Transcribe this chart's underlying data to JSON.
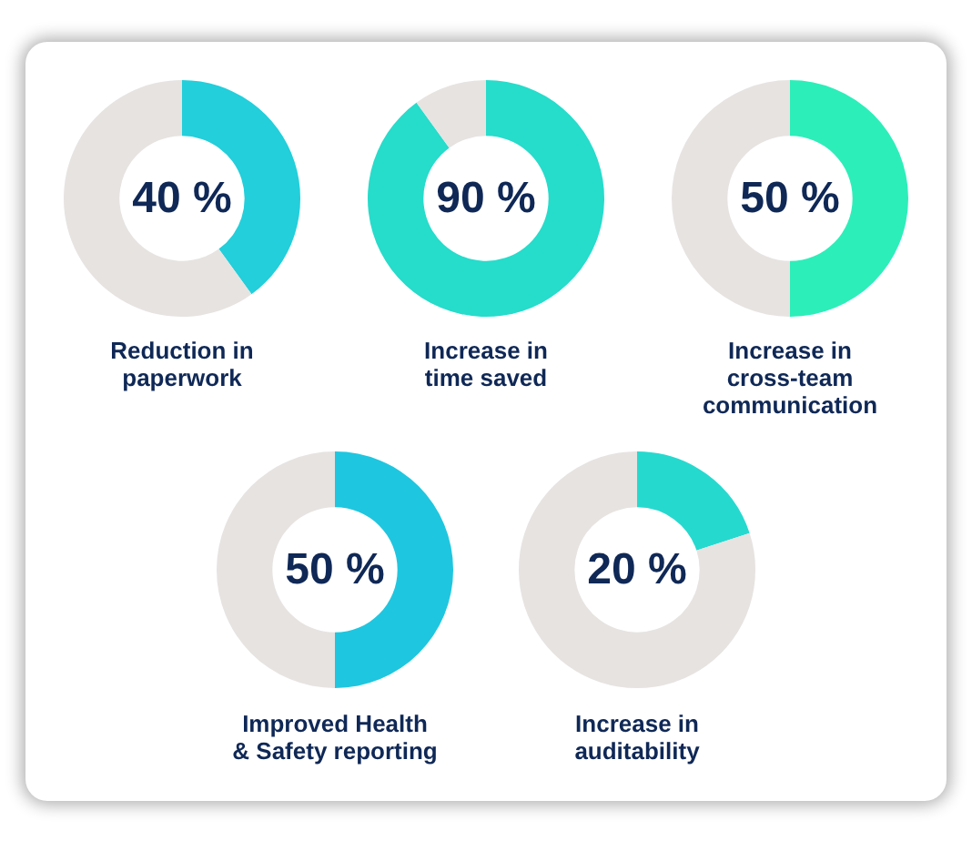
{
  "chart_data": [
    {
      "type": "donut",
      "title": "Reduction in paperwork",
      "categories": [
        null,
        null
      ],
      "values": [
        40,
        60
      ],
      "colors": [
        "#22cfdb",
        "#e6e3e1"
      ],
      "annotations": [
        "40 %"
      ]
    },
    {
      "type": "donut",
      "title": "Increase in time saved",
      "categories": [
        null,
        null
      ],
      "values": [
        90,
        10
      ],
      "colors": [
        "#26dccb",
        "#e6e3e1"
      ],
      "annotations": [
        "90 %"
      ]
    },
    {
      "type": "donut",
      "title": "Increase in cross-team communication",
      "categories": [
        null,
        null
      ],
      "values": [
        50,
        50
      ],
      "colors": [
        "#2ceeb9",
        "#e6e3e1"
      ],
      "annotations": [
        "50 %"
      ]
    },
    {
      "type": "donut",
      "title": "Improved Health & Safety reporting",
      "categories": [
        null,
        null
      ],
      "values": [
        50,
        50
      ],
      "colors": [
        "#1fc6df",
        "#e6e3e1"
      ],
      "annotations": [
        "50 %"
      ]
    },
    {
      "type": "donut",
      "title": "Increase in auditability",
      "categories": [
        null,
        null
      ],
      "values": [
        20,
        80
      ],
      "colors": [
        "#26d9cf",
        "#e6e3e1"
      ],
      "annotations": [
        "20 %"
      ]
    }
  ]
}
